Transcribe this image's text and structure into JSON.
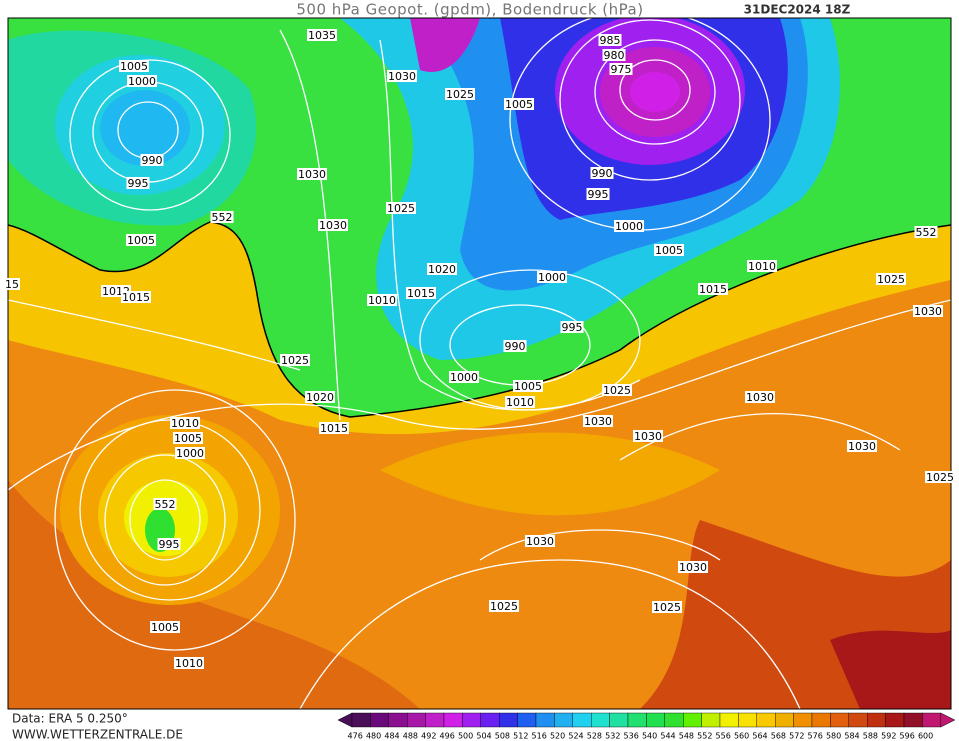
{
  "header": {
    "title": "500 hPa Geopot. (gpdm), Bodendruck (hPa)",
    "date": "31DEC2024 18Z"
  },
  "map": {
    "contour_labels": [
      "1035",
      "1005",
      "1000",
      "1030",
      "1025",
      "1005",
      "985",
      "980",
      "975",
      "990",
      "995",
      "1030",
      "990",
      "995",
      "1025",
      "552",
      "1030",
      "1000",
      "1005",
      "552",
      "1005",
      "1010",
      "1020",
      "1025",
      "1000",
      "15",
      "1012",
      "1015",
      "1010",
      "1015",
      "1015",
      "1030",
      "995",
      "990",
      "1025",
      "1000",
      "1005",
      "1010",
      "1025",
      "1030",
      "1020",
      "1030",
      "1015",
      "1030",
      "1010",
      "1005",
      "1000",
      "1030",
      "1025",
      "552",
      "995",
      "1030",
      "1030",
      "1025",
      "1025",
      "1005",
      "1010"
    ]
  },
  "colorbar": {
    "levels": [
      476,
      480,
      484,
      488,
      492,
      496,
      500,
      504,
      508,
      512,
      516,
      520,
      524,
      528,
      532,
      536,
      540,
      544,
      548,
      552,
      556,
      560,
      564,
      568,
      572,
      576,
      580,
      584,
      588,
      592,
      596,
      600
    ],
    "colors": [
      "#4b0f5a",
      "#6a0a7a",
      "#8a1090",
      "#a818a8",
      "#c020c8",
      "#d020e8",
      "#a020f0",
      "#6a20f0",
      "#3030e8",
      "#2060f0",
      "#2090f0",
      "#20b0f0",
      "#20d0f0",
      "#20e0d0",
      "#20e0a0",
      "#20e070",
      "#20e050",
      "#30e030",
      "#60f000",
      "#c0f000",
      "#f0f000",
      "#f8e000",
      "#f8c800",
      "#f0b000",
      "#f09000",
      "#e87800",
      "#e06010",
      "#d04a10",
      "#c03010",
      "#a81818",
      "#901028",
      "#c01870"
    ]
  },
  "footer": {
    "source": "Data: ERA 5 0.250°",
    "website": "WWW.WETTERZENTRALE.DE"
  }
}
